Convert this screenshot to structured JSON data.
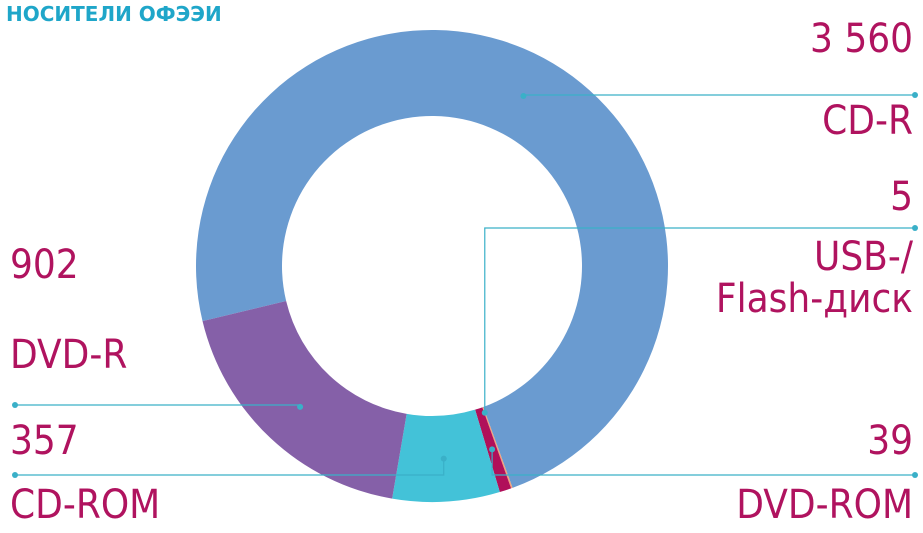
{
  "chart_data": {
    "type": "donut",
    "title": "НОСИТЕЛИ ОФЭЭИ",
    "categories": [
      "CD-R",
      "USB-/\nFlash-диск",
      "DVD-ROM",
      "CD-ROM",
      "DVD-R"
    ],
    "values": [
      3560,
      5,
      39,
      357,
      902
    ],
    "value_labels": [
      "3 560",
      "5",
      "39",
      "357",
      "902"
    ],
    "colors": [
      "#6a9bd0",
      "#f4a07a",
      "#b0105a",
      "#43c2d8",
      "#8560a8"
    ]
  }
}
